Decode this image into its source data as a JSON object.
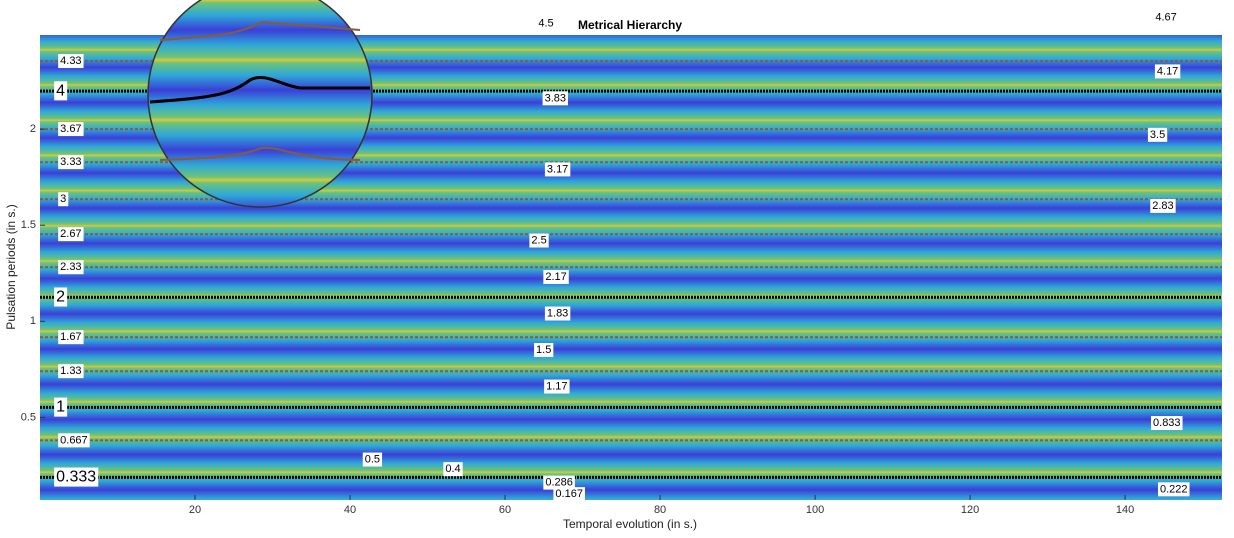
{
  "chart_data": {
    "type": "metrical-hierarchy",
    "title": "Metrical Hierarchy",
    "x_label": "Temporal evolution (in s.)",
    "y_label": "Pulsation periods (in s.)",
    "xlim": [
      0,
      152.5
    ],
    "ylim": [
      0.07,
      2.49
    ],
    "xticks": [
      20,
      40,
      60,
      80,
      100,
      120,
      140
    ],
    "yticks": [
      0.5,
      1,
      1.5,
      2
    ],
    "label_x": 2.6,
    "levels": [
      {
        "label": "4.33",
        "period": 2.354,
        "color": "#8a5a3a"
      },
      {
        "label": "4",
        "period": 2.198,
        "color": "#000000"
      },
      {
        "label": "3.67",
        "period": 2.0,
        "color": "#8a5a3a"
      },
      {
        "label": "3.33",
        "period": 1.828,
        "color": "#8a5a3a"
      },
      {
        "label": "3",
        "period": 1.635,
        "color": "#8a5a3a"
      },
      {
        "label": "2.67",
        "period": 1.453,
        "color": "#8a5a3a"
      },
      {
        "label": "2.33",
        "period": 1.281,
        "color": "#8a5a3a"
      },
      {
        "label": "2",
        "period": 1.125,
        "color": "#000000"
      },
      {
        "label": "1.67",
        "period": 0.917,
        "color": "#8a5a3a"
      },
      {
        "label": "1.33",
        "period": 0.74,
        "color": "#8a5a3a"
      },
      {
        "label": "1",
        "period": 0.552,
        "color": "#000000"
      },
      {
        "label": "0.667",
        "period": 0.38,
        "color": "#8a5a3a"
      },
      {
        "label": "0.333",
        "period": 0.188,
        "color": "#000000"
      }
    ],
    "annotations": [
      {
        "text": "4.5",
        "x": 64.3,
        "y": 2.55
      },
      {
        "text": "3.83",
        "x": 65.1,
        "y": 2.16
      },
      {
        "text": "3.17",
        "x": 65.4,
        "y": 1.79
      },
      {
        "text": "2.5",
        "x": 63.4,
        "y": 1.42
      },
      {
        "text": "2.17",
        "x": 65.2,
        "y": 1.23
      },
      {
        "text": "1.83",
        "x": 65.4,
        "y": 1.04
      },
      {
        "text": "1.5",
        "x": 64.0,
        "y": 0.85
      },
      {
        "text": "1.17",
        "x": 65.3,
        "y": 0.66
      },
      {
        "text": "0.5",
        "x": 41.9,
        "y": 0.28
      },
      {
        "text": "0.4",
        "x": 52.3,
        "y": 0.23
      },
      {
        "text": "0.286",
        "x": 65.2,
        "y": 0.16
      },
      {
        "text": "0.167",
        "x": 66.5,
        "y": 0.1
      },
      {
        "text": "4.67",
        "x": 143.9,
        "y": 2.58
      },
      {
        "text": "4.17",
        "x": 144.1,
        "y": 2.3
      },
      {
        "text": "3.5",
        "x": 143.2,
        "y": 1.97
      },
      {
        "text": "2.83",
        "x": 143.5,
        "y": 1.6
      },
      {
        "text": "0.833",
        "x": 143.6,
        "y": 0.47
      },
      {
        "text": "0.222",
        "x": 144.5,
        "y": 0.125
      }
    ]
  }
}
